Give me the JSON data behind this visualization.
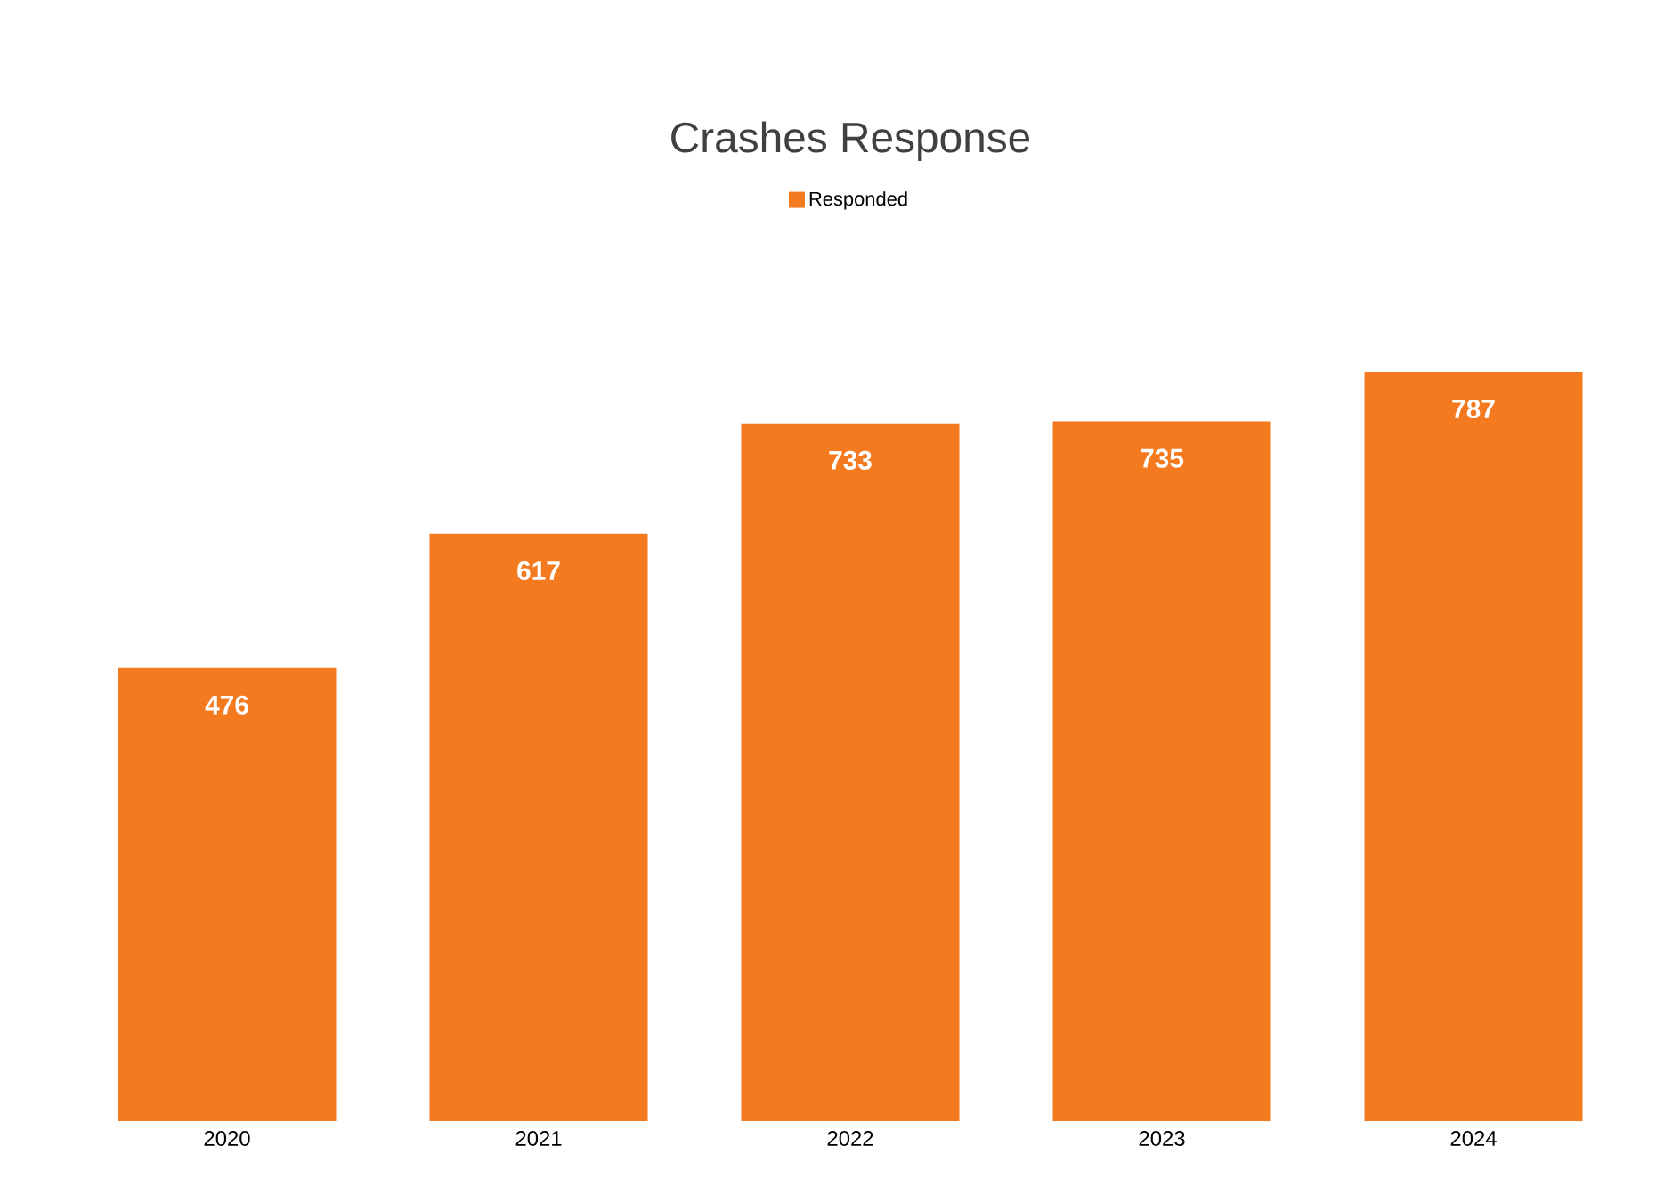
{
  "chart_data": {
    "type": "bar",
    "title": "Crashes Response",
    "categories": [
      "2020",
      "2021",
      "2022",
      "2023",
      "2024"
    ],
    "series": [
      {
        "name": "Responded",
        "color": "#f47a20",
        "values": [
          476,
          617,
          733,
          735,
          787
        ]
      }
    ],
    "data_labels": true,
    "legend": "top"
  }
}
